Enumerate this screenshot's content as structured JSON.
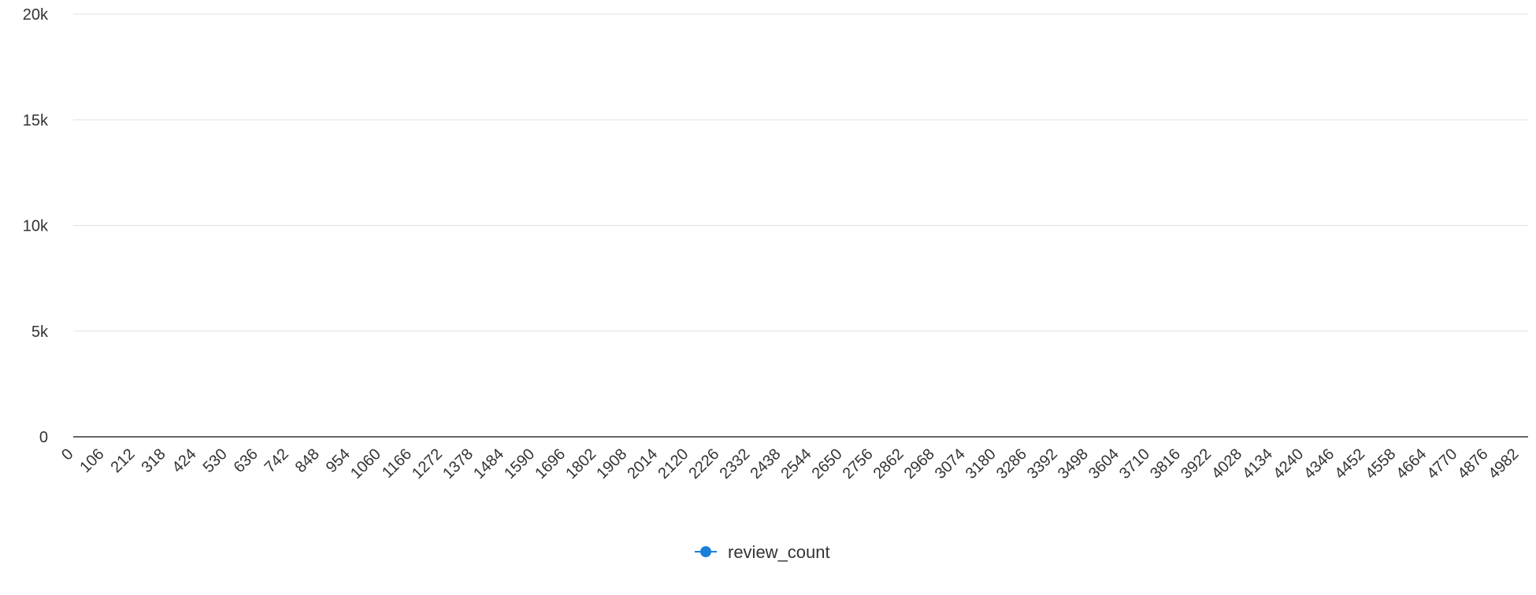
{
  "chart_data": {
    "type": "line",
    "title": "",
    "xlabel": "",
    "ylabel": "",
    "x_ticks": [
      "0",
      "106",
      "212",
      "318",
      "424",
      "530",
      "636",
      "742",
      "848",
      "954",
      "1060",
      "1166",
      "1272",
      "1378",
      "1484",
      "1590",
      "1696",
      "1802",
      "1908",
      "2014",
      "2120",
      "2226",
      "2332",
      "2438",
      "2544",
      "2650",
      "2756",
      "2862",
      "2968",
      "3074",
      "3180",
      "3286",
      "3392",
      "3498",
      "3604",
      "3710",
      "3816",
      "3922",
      "4028",
      "4134",
      "4240",
      "4346",
      "4452",
      "4558",
      "4664",
      "4770",
      "4876",
      "4982"
    ],
    "xlim": [
      0,
      4982
    ],
    "y_ticks": [
      {
        "value": 0,
        "label": "0"
      },
      {
        "value": 5000,
        "label": "5k"
      },
      {
        "value": 10000,
        "label": "10k"
      },
      {
        "value": 15000,
        "label": "15k"
      },
      {
        "value": 20000,
        "label": "20k"
      }
    ],
    "ylim": [
      0,
      20000
    ],
    "grid": true,
    "legend_position": "bottom-center",
    "series": [
      {
        "name": "review_count",
        "color": "#1a7fd9",
        "values": []
      }
    ]
  }
}
